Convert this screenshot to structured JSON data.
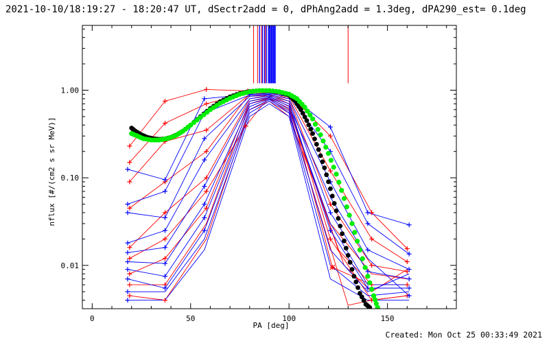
{
  "header": {
    "title": "2021-10-10/18:19:27 - 18:20:47 UT, dSectr2add = 0, dPhAng2add = 1.3deg, dPA290_est=  0.1deg"
  },
  "footer": {
    "created": "Created: Mon Oct 25 00:33:49 2021"
  },
  "chart_data": {
    "type": "line",
    "xlabel": "PA [deg]",
    "ylabel": "nflux [#/(cm2 s sr MeV)]",
    "x_range": [
      -5,
      185
    ],
    "y_range": [
      0.0032,
      5.5
    ],
    "y_scale": "log",
    "x_ticks": [
      0,
      50,
      100,
      150
    ],
    "x_tick_labels": [
      "0",
      "50",
      "100",
      "150"
    ],
    "y_ticks": [
      0.01,
      0.1,
      1.0
    ],
    "y_tick_labels": [
      "0.01",
      "0.10",
      "1.00"
    ],
    "colors": {
      "red": "#ff0000",
      "blue": "#0000ff",
      "green": "#00ee00",
      "black": "#000000"
    },
    "black_fit": {
      "x": [
        20,
        22,
        25,
        28,
        31,
        34,
        37,
        40,
        43,
        46,
        50,
        55,
        60,
        65,
        70,
        75,
        80,
        85,
        90,
        95,
        100,
        103,
        106,
        109,
        112,
        115,
        118,
        121,
        124,
        127,
        130,
        133,
        136,
        139,
        141
      ],
      "y": [
        0.37,
        0.34,
        0.31,
        0.29,
        0.28,
        0.275,
        0.278,
        0.29,
        0.31,
        0.34,
        0.4,
        0.5,
        0.62,
        0.74,
        0.84,
        0.92,
        0.97,
        0.99,
        0.98,
        0.95,
        0.87,
        0.76,
        0.6,
        0.45,
        0.32,
        0.21,
        0.13,
        0.075,
        0.042,
        0.023,
        0.013,
        0.0075,
        0.0048,
        0.0036,
        0.0033
      ]
    },
    "green_fit": {
      "x": [
        20,
        23,
        26,
        30,
        34,
        38,
        42,
        46,
        50,
        55,
        60,
        65,
        70,
        75,
        80,
        85,
        90,
        95,
        100,
        104,
        108,
        112,
        116,
        120,
        124,
        128,
        132,
        136,
        140,
        143,
        145
      ],
      "y": [
        0.32,
        0.3,
        0.28,
        0.27,
        0.27,
        0.28,
        0.3,
        0.34,
        0.4,
        0.49,
        0.6,
        0.71,
        0.81,
        0.9,
        0.96,
        0.99,
        0.99,
        0.96,
        0.9,
        0.8,
        0.64,
        0.47,
        0.31,
        0.19,
        0.11,
        0.058,
        0.03,
        0.015,
        0.0075,
        0.0045,
        0.0033
      ]
    },
    "pitch_angle_lines": {
      "red_x": [
        82,
        84,
        86,
        88,
        130
      ],
      "blue_x": [
        85,
        86.5,
        87.5,
        88.5,
        89.5,
        90,
        90.5,
        91,
        91.5,
        92,
        92.5,
        93
      ],
      "y_top": 5.5,
      "y_bottom": 1.2
    },
    "red_points": [
      {
        "x": 19,
        "y": 0.23
      },
      {
        "x": 19,
        "y": 0.15
      },
      {
        "x": 19,
        "y": 0.09
      },
      {
        "x": 19,
        "y": 0.045
      },
      {
        "x": 19,
        "y": 0.016
      },
      {
        "x": 19,
        "y": 0.012
      },
      {
        "x": 19,
        "y": 0.008
      },
      {
        "x": 19,
        "y": 0.006
      },
      {
        "x": 19,
        "y": 0.0045
      },
      {
        "x": 37,
        "y": 0.75
      },
      {
        "x": 37,
        "y": 0.42
      },
      {
        "x": 37,
        "y": 0.26
      },
      {
        "x": 37,
        "y": 0.09
      },
      {
        "x": 37,
        "y": 0.04
      },
      {
        "x": 37,
        "y": 0.02
      },
      {
        "x": 37,
        "y": 0.012
      },
      {
        "x": 37,
        "y": 0.006
      },
      {
        "x": 37,
        "y": 0.004
      },
      {
        "x": 58,
        "y": 1.02
      },
      {
        "x": 58,
        "y": 0.7
      },
      {
        "x": 58,
        "y": 0.35
      },
      {
        "x": 58,
        "y": 0.2
      },
      {
        "x": 58,
        "y": 0.1
      },
      {
        "x": 58,
        "y": 0.07
      },
      {
        "x": 58,
        "y": 0.045
      },
      {
        "x": 78,
        "y": 0.39
      },
      {
        "x": 79,
        "y": 0.98
      },
      {
        "x": 121,
        "y": 0.3
      },
      {
        "x": 121,
        "y": 0.12
      },
      {
        "x": 121,
        "y": 0.05
      },
      {
        "x": 121,
        "y": 0.02
      },
      {
        "x": 122,
        "y": 0.0095
      },
      {
        "x": 142,
        "y": 0.04
      },
      {
        "x": 142,
        "y": 0.02
      },
      {
        "x": 142,
        "y": 0.01
      },
      {
        "x": 142,
        "y": 0.006
      },
      {
        "x": 142,
        "y": 0.004
      },
      {
        "x": 160,
        "y": 0.0155
      },
      {
        "x": 160,
        "y": 0.011
      },
      {
        "x": 160,
        "y": 0.0085
      },
      {
        "x": 160,
        "y": 0.006
      },
      {
        "x": 160,
        "y": 0.0045
      }
    ],
    "blue_points": [
      {
        "x": 18,
        "y": 0.125
      },
      {
        "x": 18,
        "y": 0.05
      },
      {
        "x": 18,
        "y": 0.04
      },
      {
        "x": 18,
        "y": 0.018
      },
      {
        "x": 18,
        "y": 0.014
      },
      {
        "x": 18,
        "y": 0.011
      },
      {
        "x": 18,
        "y": 0.009
      },
      {
        "x": 18,
        "y": 0.007
      },
      {
        "x": 18,
        "y": 0.005
      },
      {
        "x": 18,
        "y": 0.004
      },
      {
        "x": 37,
        "y": 0.095
      },
      {
        "x": 37,
        "y": 0.07
      },
      {
        "x": 37,
        "y": 0.035
      },
      {
        "x": 37,
        "y": 0.025
      },
      {
        "x": 37,
        "y": 0.016
      },
      {
        "x": 37,
        "y": 0.0105
      },
      {
        "x": 37,
        "y": 0.0075
      },
      {
        "x": 37,
        "y": 0.0055
      },
      {
        "x": 57,
        "y": 0.8
      },
      {
        "x": 57,
        "y": 0.55
      },
      {
        "x": 57,
        "y": 0.28
      },
      {
        "x": 57,
        "y": 0.16
      },
      {
        "x": 57,
        "y": 0.08
      },
      {
        "x": 57,
        "y": 0.05
      },
      {
        "x": 57,
        "y": 0.035
      },
      {
        "x": 57,
        "y": 0.025
      },
      {
        "x": 80,
        "y": 0.9
      },
      {
        "x": 121,
        "y": 0.38
      },
      {
        "x": 121,
        "y": 0.2
      },
      {
        "x": 121,
        "y": 0.09
      },
      {
        "x": 121,
        "y": 0.04
      },
      {
        "x": 121,
        "y": 0.025
      },
      {
        "x": 140,
        "y": 0.04
      },
      {
        "x": 140,
        "y": 0.03
      },
      {
        "x": 140,
        "y": 0.015
      },
      {
        "x": 140,
        "y": 0.0085
      },
      {
        "x": 140,
        "y": 0.0055
      },
      {
        "x": 161,
        "y": 0.029
      },
      {
        "x": 161,
        "y": 0.0135
      },
      {
        "x": 161,
        "y": 0.009
      },
      {
        "x": 161,
        "y": 0.007
      },
      {
        "x": 161,
        "y": 0.0055
      },
      {
        "x": 161,
        "y": 0.0045
      }
    ],
    "red_series": [
      {
        "x": [
          19,
          37,
          58,
          80,
          90,
          100,
          121,
          142,
          160
        ],
        "y": [
          0.23,
          0.75,
          1.02,
          0.98,
          0.97,
          0.9,
          0.3,
          0.04,
          0.0155
        ]
      },
      {
        "x": [
          19,
          37,
          58,
          80,
          90,
          100,
          121,
          142,
          160
        ],
        "y": [
          0.15,
          0.42,
          0.7,
          0.95,
          0.96,
          0.85,
          0.12,
          0.02,
          0.011
        ]
      },
      {
        "x": [
          19,
          37,
          58,
          80,
          90,
          100,
          121,
          142,
          160
        ],
        "y": [
          0.09,
          0.26,
          0.35,
          0.9,
          0.94,
          0.8,
          0.05,
          0.01,
          0.0085
        ]
      },
      {
        "x": [
          19,
          37,
          58,
          79,
          90,
          100,
          122,
          142,
          160
        ],
        "y": [
          0.045,
          0.09,
          0.2,
          0.85,
          0.9,
          0.75,
          0.0095,
          0.006,
          0.006
        ]
      },
      {
        "x": [
          19,
          37,
          58,
          80,
          90,
          100,
          121,
          142,
          160
        ],
        "y": [
          0.016,
          0.04,
          0.1,
          0.8,
          0.88,
          0.7,
          0.02,
          0.004,
          0.0045
        ]
      },
      {
        "x": [
          19,
          37,
          58,
          78,
          90,
          100,
          125,
          142,
          160
        ],
        "y": [
          0.012,
          0.02,
          0.07,
          0.39,
          0.85,
          0.65,
          0.015,
          0.006,
          0.006
        ]
      },
      {
        "x": [
          19,
          37,
          58,
          80,
          90,
          100,
          128,
          142,
          160
        ],
        "y": [
          0.008,
          0.012,
          0.045,
          0.75,
          0.82,
          0.6,
          0.01,
          0.005,
          0.009
        ]
      },
      {
        "x": [
          19,
          37,
          58,
          80,
          90,
          100,
          130,
          142,
          160
        ],
        "y": [
          0.006,
          0.006,
          0.03,
          0.7,
          0.8,
          0.55,
          0.0035,
          0.004,
          0.0045
        ]
      },
      {
        "x": [
          19,
          37,
          58,
          80,
          90,
          100,
          121,
          142,
          160
        ],
        "y": [
          0.0045,
          0.004,
          0.02,
          0.6,
          0.75,
          0.5,
          0.03,
          0.008,
          0.007
        ]
      }
    ],
    "blue_series": [
      {
        "x": [
          18,
          37,
          57,
          80,
          90,
          100,
          121,
          140,
          161
        ],
        "y": [
          0.125,
          0.095,
          0.8,
          0.9,
          0.92,
          0.88,
          0.38,
          0.04,
          0.029
        ]
      },
      {
        "x": [
          18,
          37,
          57,
          80,
          90,
          100,
          121,
          140,
          161
        ],
        "y": [
          0.05,
          0.07,
          0.55,
          0.88,
          0.9,
          0.85,
          0.2,
          0.03,
          0.0135
        ]
      },
      {
        "x": [
          18,
          37,
          57,
          80,
          90,
          100,
          121,
          140,
          161
        ],
        "y": [
          0.04,
          0.035,
          0.28,
          0.85,
          0.88,
          0.8,
          0.09,
          0.015,
          0.009
        ]
      },
      {
        "x": [
          18,
          37,
          57,
          80,
          90,
          100,
          121,
          140,
          161
        ],
        "y": [
          0.018,
          0.025,
          0.16,
          0.8,
          0.86,
          0.75,
          0.04,
          0.0085,
          0.007
        ]
      },
      {
        "x": [
          18,
          37,
          57,
          80,
          90,
          100,
          121,
          140,
          161
        ],
        "y": [
          0.014,
          0.016,
          0.08,
          0.75,
          0.84,
          0.7,
          0.025,
          0.0055,
          0.0055
        ]
      },
      {
        "x": [
          18,
          37,
          57,
          80,
          90,
          100,
          121,
          140,
          161
        ],
        "y": [
          0.011,
          0.0105,
          0.05,
          0.7,
          0.82,
          0.66,
          0.06,
          0.012,
          0.0045
        ]
      },
      {
        "x": [
          18,
          37,
          57,
          80,
          90,
          100,
          121,
          140,
          161
        ],
        "y": [
          0.009,
          0.0075,
          0.035,
          0.65,
          0.8,
          0.62,
          0.03,
          0.006,
          0.006
        ]
      },
      {
        "x": [
          18,
          37,
          57,
          80,
          90,
          100,
          121,
          140,
          161
        ],
        "y": [
          0.007,
          0.0055,
          0.025,
          0.6,
          0.78,
          0.58,
          0.015,
          0.005,
          0.008
        ]
      },
      {
        "x": [
          18,
          37,
          57,
          80,
          90,
          100,
          121,
          140,
          161
        ],
        "y": [
          0.005,
          0.005,
          0.02,
          0.55,
          0.75,
          0.55,
          0.01,
          0.0045,
          0.005
        ]
      },
      {
        "x": [
          18,
          37,
          57,
          80,
          90,
          100,
          121,
          140,
          161
        ],
        "y": [
          0.004,
          0.004,
          0.015,
          0.5,
          0.7,
          0.5,
          0.007,
          0.004,
          0.004
        ]
      }
    ]
  }
}
